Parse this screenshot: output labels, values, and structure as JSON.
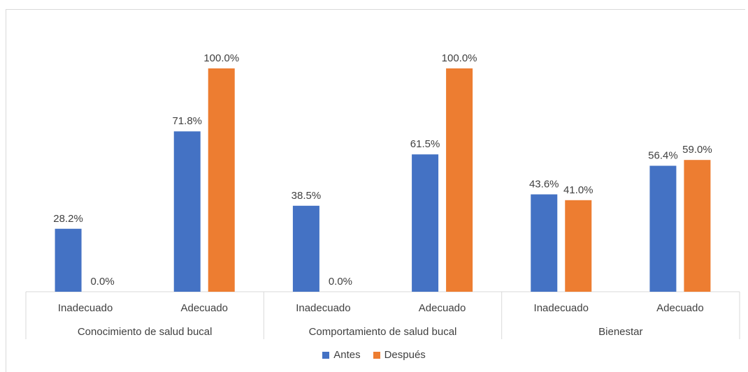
{
  "chart_data": {
    "type": "bar",
    "groups": [
      "Conocimiento de salud bucal",
      "Comportamiento de salud bucal",
      "Bienestar"
    ],
    "categories": [
      "Inadecuado",
      "Adecuado",
      "Inadecuado",
      "Adecuado",
      "Inadecuado",
      "Adecuado"
    ],
    "series": [
      {
        "name": "Antes",
        "color": "#4472C4",
        "values": [
          28.2,
          71.8,
          38.5,
          61.5,
          43.6,
          56.4
        ],
        "labels": [
          "28.2%",
          "71.8%",
          "38.5%",
          "61.5%",
          "43.6%",
          "56.4%"
        ]
      },
      {
        "name": "Después",
        "color": "#ED7D31",
        "values": [
          0.0,
          100.0,
          0.0,
          100.0,
          41.0,
          59.0
        ],
        "labels": [
          "0.0%",
          "100.0%",
          "0.0%",
          "100.0%",
          "41.0%",
          "59.0%"
        ]
      }
    ],
    "ylim": [
      0,
      100
    ],
    "grid": false,
    "legend": "bottom"
  }
}
